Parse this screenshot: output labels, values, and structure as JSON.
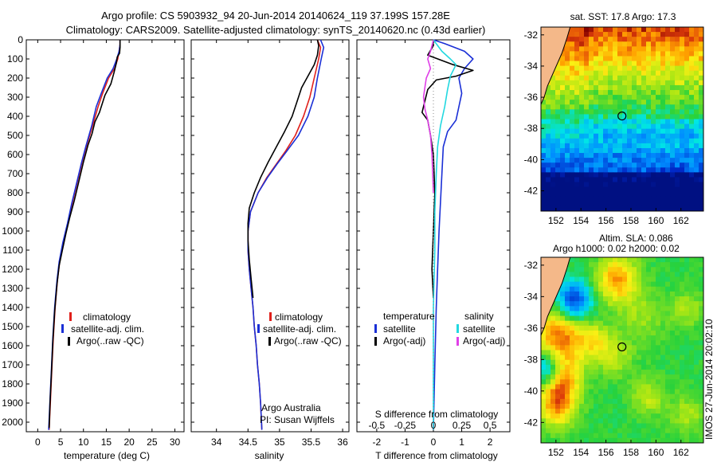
{
  "header": {
    "title_line1": "Argo profile: CS 5903932_94 20-Jun-2014 20140624_119 37.199S 157.28E",
    "title_line2": "Climatology: CARS2009. Satellite-adjusted climatology: synTS_20140620.nc (0.43d earlier)"
  },
  "colors": {
    "climatology": "#e0201b",
    "satellite": "#1a2fd6",
    "argo": "#000000",
    "sal_satellite": "#22d8e0",
    "sal_argo": "#e040e8",
    "land": "#f4b889"
  },
  "depth_axis": {
    "ticks": [
      "0",
      "100",
      "200",
      "300",
      "400",
      "500",
      "600",
      "700",
      "800",
      "900",
      "1000",
      "1100",
      "1200",
      "1300",
      "1400",
      "1500",
      "1600",
      "1700",
      "1800",
      "1900",
      "2000"
    ],
    "range": [
      0,
      2050
    ]
  },
  "chart_data": [
    {
      "type": "line",
      "name": "temperature profile",
      "xlabel": "temperature (deg C)",
      "xticks": [
        "0",
        "5",
        "10",
        "15",
        "20",
        "25",
        "30"
      ],
      "xlim": [
        -2.5,
        32
      ],
      "legend": [
        "climatology",
        "satellite-adj. clim.",
        "Argo(..raw -QC)"
      ],
      "series": [
        {
          "key": "climatology",
          "points": [
            [
              18,
              0
            ],
            [
              18,
              25
            ],
            [
              17.8,
              60
            ],
            [
              17.5,
              100
            ],
            [
              16.8,
              150
            ],
            [
              15.5,
              200
            ],
            [
              14.2,
              280
            ],
            [
              13.2,
              350
            ],
            [
              12,
              450
            ],
            [
              10.6,
              560
            ],
            [
              9.6,
              650
            ],
            [
              8.5,
              760
            ],
            [
              7.5,
              860
            ],
            [
              6.6,
              960
            ],
            [
              5.6,
              1060
            ],
            [
              4.8,
              1160
            ],
            [
              4.3,
              1260
            ],
            [
              3.8,
              1400
            ],
            [
              3.4,
              1560
            ],
            [
              3.1,
              1720
            ],
            [
              2.8,
              1880
            ],
            [
              2.5,
              2040
            ]
          ]
        },
        {
          "key": "satellite",
          "points": [
            [
              18,
              0
            ],
            [
              18,
              25
            ],
            [
              17.8,
              60
            ],
            [
              17.3,
              100
            ],
            [
              16.5,
              150
            ],
            [
              15.2,
              200
            ],
            [
              13.9,
              280
            ],
            [
              12.8,
              350
            ],
            [
              11.8,
              450
            ],
            [
              10.5,
              560
            ],
            [
              9.5,
              650
            ],
            [
              8.4,
              760
            ],
            [
              7.4,
              860
            ],
            [
              6.5,
              960
            ],
            [
              5.5,
              1060
            ],
            [
              4.7,
              1160
            ],
            [
              4.2,
              1260
            ],
            [
              3.7,
              1400
            ],
            [
              3.3,
              1560
            ],
            [
              3,
              1720
            ],
            [
              2.7,
              1880
            ],
            [
              2.4,
              2040
            ]
          ]
        },
        {
          "key": "argo",
          "points": [
            [
              18,
              0
            ],
            [
              18,
              40
            ],
            [
              17.9,
              70
            ],
            [
              17.4,
              90
            ],
            [
              17.2,
              120
            ],
            [
              16.7,
              170
            ],
            [
              16,
              230
            ],
            [
              14.7,
              290
            ],
            [
              13.5,
              380
            ],
            [
              12.5,
              430
            ],
            [
              11.9,
              490
            ],
            [
              11,
              550
            ],
            [
              10,
              640
            ],
            [
              9,
              740
            ],
            [
              8,
              840
            ],
            [
              7,
              930
            ],
            [
              6.2,
              1010
            ],
            [
              5.4,
              1100
            ],
            [
              4.7,
              1180
            ],
            [
              4.2,
              1280
            ],
            [
              3.7,
              1420
            ],
            [
              3.3,
              1580
            ],
            [
              3,
              1740
            ],
            [
              2.7,
              1900
            ],
            [
              2.5,
              2030
            ]
          ]
        }
      ]
    },
    {
      "type": "line",
      "name": "salinity profile",
      "xlabel": "salinity",
      "xticks": [
        "34",
        "34.5",
        "35",
        "35.5",
        "36"
      ],
      "xlim": [
        33.6,
        36.1
      ],
      "legend": [
        "climatology",
        "satellite-adj. clim.",
        "Argo(..raw -QC)"
      ],
      "annotation": [
        "Argo Australia",
        "PI: Susan Wijffels"
      ],
      "series": [
        {
          "key": "climatology",
          "points": [
            [
              35.6,
              0
            ],
            [
              35.65,
              40
            ],
            [
              35.62,
              100
            ],
            [
              35.55,
              200
            ],
            [
              35.48,
              300
            ],
            [
              35.38,
              400
            ],
            [
              35.25,
              500
            ],
            [
              35.1,
              580
            ],
            [
              34.95,
              650
            ],
            [
              34.8,
              720
            ],
            [
              34.66,
              800
            ],
            [
              34.54,
              900
            ],
            [
              34.5,
              1000
            ],
            [
              34.5,
              1100
            ],
            [
              34.52,
              1200
            ],
            [
              34.55,
              1300
            ],
            [
              34.58,
              1400
            ],
            [
              34.6,
              1500
            ],
            [
              34.63,
              1600
            ],
            [
              34.65,
              1700
            ],
            [
              34.68,
              1800
            ],
            [
              34.7,
              1900
            ],
            [
              34.72,
              2040
            ]
          ]
        },
        {
          "key": "satellite",
          "points": [
            [
              35.65,
              0
            ],
            [
              35.7,
              40
            ],
            [
              35.66,
              100
            ],
            [
              35.6,
              200
            ],
            [
              35.55,
              300
            ],
            [
              35.45,
              400
            ],
            [
              35.3,
              500
            ],
            [
              35.12,
              580
            ],
            [
              34.96,
              650
            ],
            [
              34.81,
              720
            ],
            [
              34.66,
              800
            ],
            [
              34.54,
              900
            ],
            [
              34.5,
              1000
            ],
            [
              34.5,
              1100
            ],
            [
              34.52,
              1200
            ],
            [
              34.55,
              1300
            ],
            [
              34.58,
              1400
            ],
            [
              34.6,
              1500
            ],
            [
              34.63,
              1600
            ],
            [
              34.65,
              1700
            ],
            [
              34.68,
              1800
            ],
            [
              34.7,
              1900
            ],
            [
              34.72,
              2040
            ]
          ]
        },
        {
          "key": "argo",
          "points": [
            [
              35.6,
              0
            ],
            [
              35.62,
              30
            ],
            [
              35.6,
              80
            ],
            [
              35.55,
              130
            ],
            [
              35.45,
              190
            ],
            [
              35.35,
              250
            ],
            [
              35.28,
              320
            ],
            [
              35.2,
              400
            ],
            [
              35.08,
              480
            ],
            [
              34.95,
              560
            ],
            [
              34.82,
              640
            ],
            [
              34.7,
              720
            ],
            [
              34.6,
              800
            ],
            [
              34.52,
              880
            ],
            [
              34.5,
              960
            ],
            [
              34.5,
              1050
            ],
            [
              34.52,
              1150
            ],
            [
              34.55,
              1250
            ],
            [
              34.58,
              1350
            ]
          ]
        }
      ]
    },
    {
      "type": "line",
      "name": "difference from climatology",
      "xlabel": "T difference from climatology",
      "xlabel2": "S difference from climatology",
      "xticks": [
        "-2",
        "-1",
        "0",
        "1",
        "2"
      ],
      "xticks_s": [
        "-0.5",
        "-0.25",
        "0",
        "0.25",
        "0.5"
      ],
      "xlim": [
        -2.7,
        2.7
      ],
      "legend_left_title": "temperature",
      "legend_right_title": "salinity",
      "legend_left": [
        "satellite",
        "Argo(-adj)"
      ],
      "legend_right": [
        "satellite",
        "Argo(-adj)"
      ],
      "series": [
        {
          "key": "satellite",
          "points": [
            [
              0,
              0
            ],
            [
              0.4,
              20
            ],
            [
              1.1,
              60
            ],
            [
              1.4,
              100
            ],
            [
              1.1,
              150
            ],
            [
              0.9,
              200
            ],
            [
              1.0,
              280
            ],
            [
              0.9,
              350
            ],
            [
              0.8,
              420
            ],
            [
              0.5,
              480
            ],
            [
              0.35,
              560
            ],
            [
              0.3,
              700
            ],
            [
              0.25,
              850
            ],
            [
              0.2,
              1000
            ],
            [
              0.15,
              1200
            ],
            [
              0.1,
              1400
            ],
            [
              0.05,
              1700
            ],
            [
              0,
              2040
            ]
          ]
        },
        {
          "key": "argo",
          "points": [
            [
              0,
              0
            ],
            [
              0,
              30
            ],
            [
              -0.2,
              80
            ],
            [
              0.7,
              130
            ],
            [
              1.4,
              160
            ],
            [
              0.8,
              190
            ],
            [
              0.1,
              210
            ],
            [
              -0.2,
              260
            ],
            [
              -0.3,
              320
            ],
            [
              -0.4,
              380
            ],
            [
              -0.2,
              420
            ],
            [
              -0.1,
              500
            ],
            [
              0,
              600
            ],
            [
              0.05,
              800
            ],
            [
              0,
              1000
            ],
            [
              -0.05,
              1200
            ],
            [
              0,
              1350
            ]
          ]
        },
        {
          "key": "sal_satellite",
          "points": [
            [
              0,
              0
            ],
            [
              0.3,
              60
            ],
            [
              0.6,
              100
            ],
            [
              0.8,
              130
            ],
            [
              0.6,
              190
            ],
            [
              0.5,
              260
            ],
            [
              0.4,
              350
            ],
            [
              0.25,
              450
            ],
            [
              0.15,
              560
            ],
            [
              0.1,
              700
            ],
            [
              0.05,
              900
            ],
            [
              0.05,
              1100
            ],
            [
              0,
              1400
            ],
            [
              0,
              2040
            ]
          ]
        },
        {
          "key": "sal_argo",
          "points": [
            [
              0,
              0
            ],
            [
              -0.1,
              60
            ],
            [
              -0.2,
              100
            ],
            [
              -0.1,
              150
            ],
            [
              -0.25,
              200
            ],
            [
              -0.3,
              250
            ],
            [
              -0.35,
              300
            ],
            [
              -0.3,
              360
            ],
            [
              -0.2,
              420
            ],
            [
              -0.1,
              500
            ],
            [
              -0.05,
              600
            ],
            [
              0,
              800
            ]
          ]
        }
      ]
    },
    {
      "type": "heatmap",
      "name": "SST map",
      "title": "sat. SST: 17.8 Argo: 17.3",
      "xticks": [
        "152",
        "154",
        "156",
        "158",
        "160",
        "162"
      ],
      "yticks": [
        "-32",
        "-34",
        "-36",
        "-38",
        "-40",
        "-42"
      ],
      "xlim": [
        150.8,
        163.8
      ],
      "ylim": [
        -43.3,
        -31.5
      ],
      "argo_position": [
        157.28,
        -37.199
      ]
    },
    {
      "type": "heatmap",
      "name": "SLA map",
      "title_line1": "Altim. SLA: 0.086",
      "title_line2": "Argo h1000: 0.02 h2000: 0.02",
      "xticks": [
        "152",
        "154",
        "156",
        "158",
        "160",
        "162"
      ],
      "yticks": [
        "-32",
        "-34",
        "-36",
        "-38",
        "-40",
        "-42"
      ],
      "xlim": [
        150.8,
        163.8
      ],
      "ylim": [
        -43.3,
        -31.5
      ],
      "argo_position": [
        157.28,
        -37.199
      ]
    }
  ],
  "side_caption": "IMOS 27-Jun-2014 20:02:10"
}
